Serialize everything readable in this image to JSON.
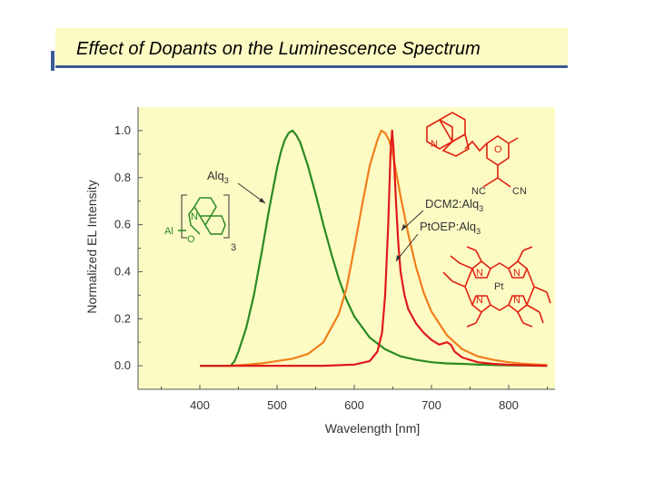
{
  "slide": {
    "title": "Effect of Dopants on the Luminescence Spectrum"
  },
  "colors": {
    "background": "#fdfbc4",
    "title_underline": "#3b5a94",
    "alq3": "#2a8a22",
    "dcm2": "#f07f1c",
    "ptoep": "#e01a1a",
    "molecule": "#e02010",
    "alq3_molecule": "#2a8a22"
  },
  "chart_data": {
    "type": "line",
    "title": "",
    "xlabel": "Wavelength [nm]",
    "ylabel": "Normalized EL Intensity",
    "xlim": [
      320,
      860
    ],
    "ylim": [
      -0.1,
      1.1
    ],
    "x_ticks": [
      "400",
      "500",
      "600",
      "700",
      "800"
    ],
    "x_tick_values": [
      400,
      500,
      600,
      700,
      800
    ],
    "y_ticks": [
      "0.0",
      "0.2",
      "0.4",
      "0.6",
      "0.8",
      "1.0"
    ],
    "y_tick_values": [
      0.0,
      0.2,
      0.4,
      0.6,
      0.8,
      1.0
    ],
    "series": [
      {
        "name": "Alq3",
        "color": "#2a8a22",
        "x": [
          400,
          440,
          445,
          450,
          460,
          470,
          480,
          490,
          500,
          505,
          510,
          515,
          520,
          525,
          530,
          540,
          550,
          560,
          570,
          580,
          590,
          600,
          620,
          640,
          660,
          680,
          700,
          720,
          740,
          760,
          780,
          800,
          820,
          850
        ],
        "y": [
          0.0,
          0.0,
          0.02,
          0.06,
          0.16,
          0.3,
          0.48,
          0.67,
          0.84,
          0.91,
          0.96,
          0.99,
          1.0,
          0.98,
          0.95,
          0.85,
          0.73,
          0.6,
          0.48,
          0.37,
          0.28,
          0.21,
          0.12,
          0.07,
          0.04,
          0.025,
          0.015,
          0.01,
          0.008,
          0.005,
          0.003,
          0.002,
          0.001,
          0.0
        ]
      },
      {
        "name": "DCM2:Alq3",
        "color": "#f07f1c",
        "x": [
          440,
          460,
          480,
          500,
          520,
          540,
          560,
          580,
          590,
          600,
          610,
          620,
          630,
          635,
          640,
          645,
          650,
          660,
          670,
          680,
          690,
          700,
          720,
          740,
          760,
          780,
          800,
          820,
          850
        ],
        "y": [
          0.0,
          0.005,
          0.01,
          0.02,
          0.03,
          0.05,
          0.1,
          0.22,
          0.33,
          0.5,
          0.68,
          0.85,
          0.96,
          1.0,
          0.99,
          0.96,
          0.9,
          0.72,
          0.56,
          0.42,
          0.31,
          0.23,
          0.13,
          0.07,
          0.04,
          0.025,
          0.015,
          0.008,
          0.003
        ]
      },
      {
        "name": "PtOEP:Alq3",
        "color": "#e01a1a",
        "x": [
          400,
          560,
          600,
          620,
          630,
          636,
          640,
          644,
          647,
          649,
          651,
          654,
          657,
          660,
          665,
          670,
          680,
          690,
          700,
          710,
          720,
          725,
          730,
          740,
          760,
          780,
          800,
          850
        ],
        "y": [
          0.0,
          0.0,
          0.005,
          0.02,
          0.06,
          0.14,
          0.3,
          0.6,
          0.9,
          1.0,
          0.92,
          0.7,
          0.52,
          0.4,
          0.3,
          0.24,
          0.18,
          0.14,
          0.11,
          0.09,
          0.1,
          0.09,
          0.06,
          0.035,
          0.015,
          0.008,
          0.004,
          0.0
        ]
      }
    ],
    "annotations": [
      {
        "text": "Alq",
        "sub": "3"
      },
      {
        "text": "DCM2:Alq",
        "sub": "3"
      },
      {
        "text": "PtOEP:Alq",
        "sub": "3"
      }
    ]
  },
  "molecules": {
    "alq3": {
      "metal": "Al",
      "n": "N",
      "o": "O",
      "count": "3"
    },
    "dcm2": {
      "n": "N",
      "o": "O",
      "nc": "NC",
      "cn": "CN"
    },
    "ptoep": {
      "n1": "N",
      "n2": "N",
      "n3": "N",
      "n4": "N",
      "pt": "Pt"
    }
  }
}
